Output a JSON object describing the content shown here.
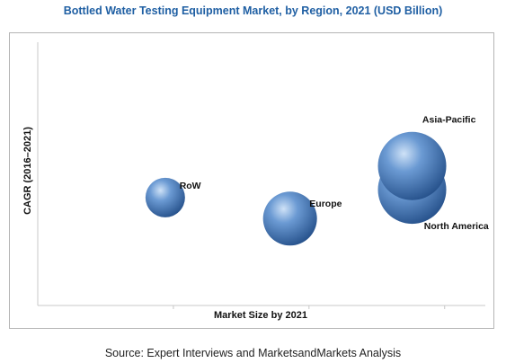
{
  "title": "Bottled Water Testing Equipment Market, by Region, 2021 (USD Billion)",
  "source": "Source: Expert Interviews and MarketsandMarkets Analysis",
  "chart_data": {
    "type": "bubble",
    "xlabel": "Market Size by 2021",
    "ylabel": "CAGR (2016–2021)",
    "grid": false,
    "legend": "none",
    "bubble_color": "#3f73b6",
    "points": [
      {
        "label": "RoW",
        "x": 0.47,
        "y": 0.41,
        "size": 22
      },
      {
        "label": "Europe",
        "x": 0.93,
        "y": 0.33,
        "size": 30
      },
      {
        "label": "North America",
        "x": 1.38,
        "y": 0.44,
        "size": 38
      },
      {
        "label": "Asia-Pacific",
        "x": 1.38,
        "y": 0.53,
        "size": 38
      }
    ],
    "xlim": [
      0,
      1.65
    ],
    "ylim": [
      0,
      1
    ]
  }
}
